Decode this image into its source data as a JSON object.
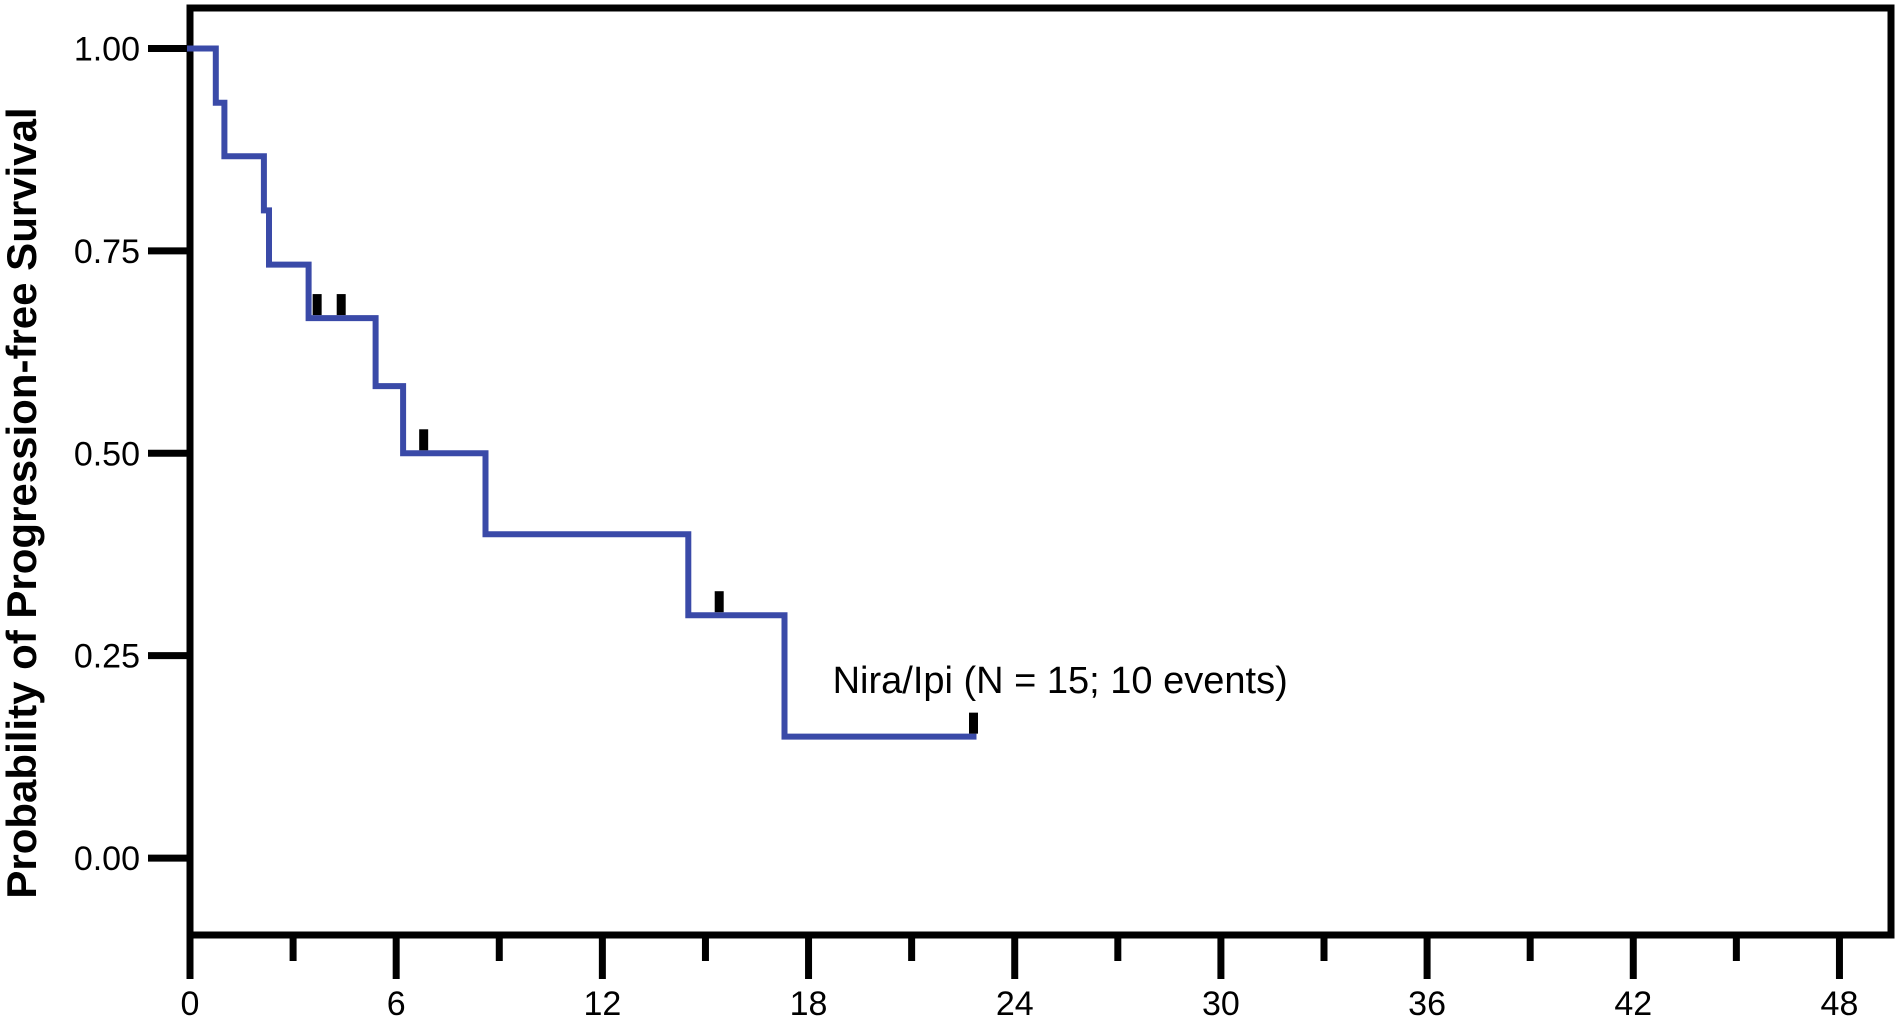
{
  "chart_data": {
    "type": "line",
    "title": "",
    "xlabel": "",
    "ylabel": "Probability of Progression-free Survival",
    "xlim": [
      0,
      49.5
    ],
    "ylim": [
      -0.095,
      1.05
    ],
    "x_ticks": [
      0,
      6,
      12,
      18,
      24,
      30,
      36,
      42,
      48
    ],
    "x_tick_labels": [
      "0",
      "6",
      "12",
      "18",
      "24",
      "30",
      "36",
      "42",
      "48"
    ],
    "x_minor_ticks": [
      3,
      9,
      15,
      21,
      27,
      33,
      39,
      45
    ],
    "y_ticks": [
      0,
      0.25,
      0.5,
      0.75,
      1.0
    ],
    "y_tick_labels": [
      "0.00",
      "0.25",
      "0.50",
      "0.75",
      "1.00"
    ],
    "grid": false,
    "color": "#3a4aa8",
    "series": [
      {
        "name": "Nira/Ipi (N = 15; 10 events)",
        "step_curve": [
          [
            0,
            1.0
          ],
          [
            0.75,
            1.0
          ],
          [
            0.75,
            0.933
          ],
          [
            1.0,
            0.933
          ],
          [
            1.0,
            0.867
          ],
          [
            2.15,
            0.867
          ],
          [
            2.15,
            0.8
          ],
          [
            2.3,
            0.8
          ],
          [
            2.3,
            0.733
          ],
          [
            3.45,
            0.733
          ],
          [
            3.45,
            0.667
          ],
          [
            5.4,
            0.667
          ],
          [
            5.4,
            0.583
          ],
          [
            6.2,
            0.583
          ],
          [
            6.2,
            0.5
          ],
          [
            8.6,
            0.5
          ],
          [
            8.6,
            0.4
          ],
          [
            14.5,
            0.4
          ],
          [
            14.5,
            0.3
          ],
          [
            17.3,
            0.3
          ],
          [
            17.3,
            0.15
          ],
          [
            22.8,
            0.15
          ]
        ],
        "censored": [
          [
            3.7,
            0.667
          ],
          [
            4.4,
            0.667
          ],
          [
            6.8,
            0.5
          ],
          [
            15.4,
            0.3
          ],
          [
            22.8,
            0.15
          ]
        ]
      }
    ],
    "annotations": [
      {
        "text": "Nira/Ipi (N = 15; 10 events)",
        "x": 18.7,
        "y": 0.22
      }
    ]
  }
}
